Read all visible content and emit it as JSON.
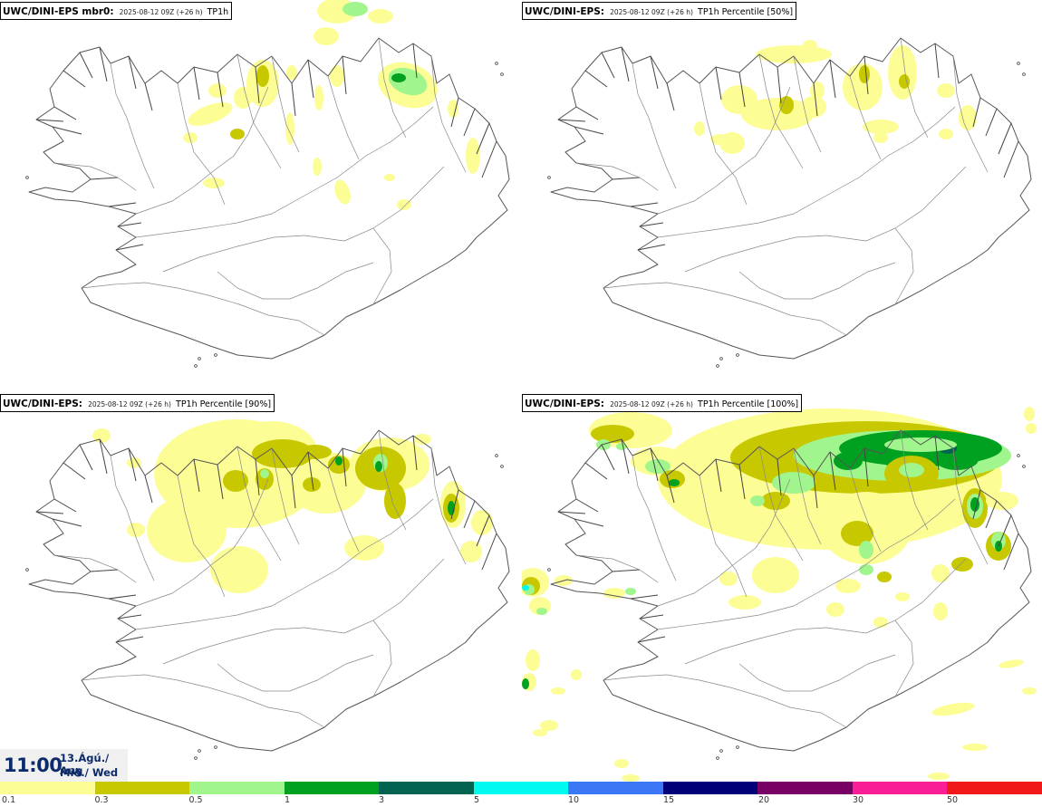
{
  "panels": [
    {
      "id": "mbr0",
      "model": "UWC/DINI-EPS mbr0",
      "date": "2025-08-12 09Z (+26 h)",
      "param": "TP1h"
    },
    {
      "id": "p50",
      "model": "UWC/DINI-EPS",
      "date": "2025-08-12 09Z (+26 h)",
      "param": "TP1h Percentile [50%]"
    },
    {
      "id": "p90",
      "model": "UWC/DINI-EPS",
      "date": "2025-08-12 09Z (+26 h)",
      "param": "TP1h Percentile [90%]"
    },
    {
      "id": "p100",
      "model": "UWC/DINI-EPS",
      "date": "2025-08-12 09Z (+26 h)",
      "param": "TP1h Percentile [100%]"
    }
  ],
  "time": {
    "main": "11:00",
    "date_line1": "13.Ágú./ Aug",
    "date_line2": "Mið./ Wed"
  },
  "legend": {
    "ticks": [
      "0.1",
      "0.3",
      "0.5",
      "1",
      "3",
      "5",
      "10",
      "15",
      "20",
      "30",
      "50"
    ],
    "colors": [
      "#fdfd96",
      "#c8c800",
      "#a0f58c",
      "#00a020",
      "#006450",
      "#00faf0",
      "#3c78f5",
      "#000078",
      "#780064",
      "#fa1e96",
      "#f01818"
    ]
  },
  "map": {
    "coast_color": "#555555",
    "class_colors": [
      "#fdfd96",
      "#c8c800",
      "#a0f58c",
      "#00a020",
      "#006450",
      "#00faf0"
    ]
  }
}
